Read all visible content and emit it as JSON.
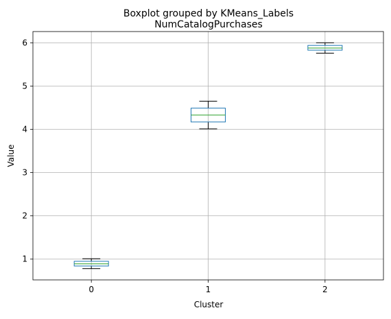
{
  "chart_data": {
    "type": "boxplot",
    "suptitle": "Boxplot grouped by KMeans_Labels",
    "title": "NumCatalogPurchases",
    "xlabel": "Cluster",
    "ylabel": "Value",
    "categories": [
      "0",
      "1",
      "2"
    ],
    "ylim": [
      0.52,
      6.26
    ],
    "yticks": [
      1,
      2,
      3,
      4,
      5,
      6
    ],
    "grid": true,
    "boxes": [
      {
        "category": "0",
        "whisker_low": 0.78,
        "q1": 0.84,
        "median": 0.89,
        "q3": 0.95,
        "whisker_high": 1.01
      },
      {
        "category": "1",
        "whisker_low": 4.01,
        "q1": 4.17,
        "median": 4.33,
        "q3": 4.49,
        "whisker_high": 4.65
      },
      {
        "category": "2",
        "whisker_low": 5.76,
        "q1": 5.83,
        "median": 5.88,
        "q3": 5.94,
        "whisker_high": 6.0
      }
    ],
    "colors": {
      "box": "#1f77b4",
      "median": "#2ca02c",
      "whisker": "#000000",
      "grid": "#b0b0b0"
    }
  }
}
